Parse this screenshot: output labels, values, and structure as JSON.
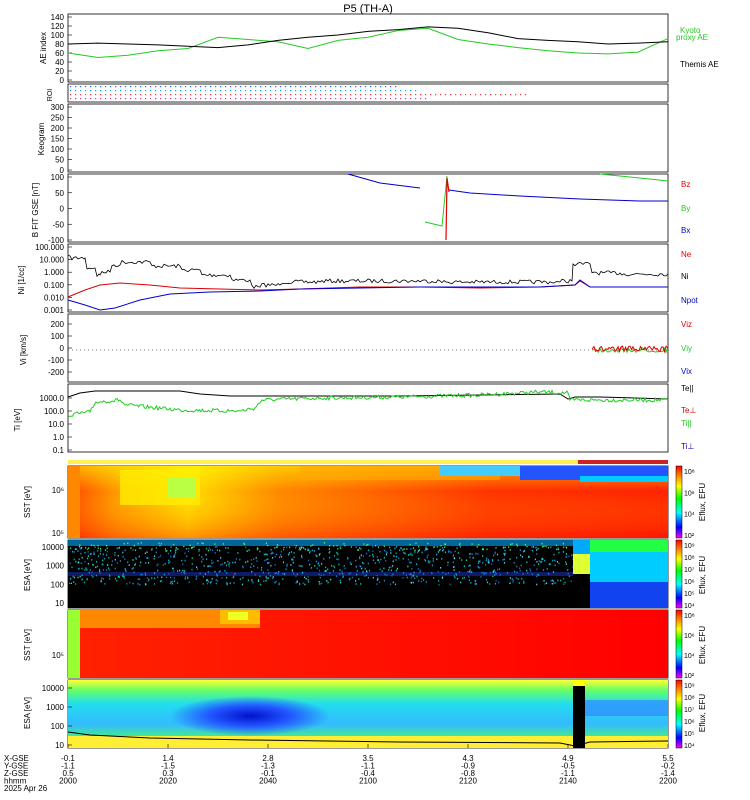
{
  "chart_data": {
    "type": "line",
    "title": "P5 (TH-A)",
    "x_start_label": "2000",
    "panels": [
      {
        "id": "ae",
        "ylabel": "AE index",
        "ylim": [
          0,
          140
        ],
        "yticks": [
          "140",
          "120",
          "100",
          "80",
          "60",
          "40",
          "20",
          "0"
        ],
        "legend": [
          {
            "text": "Kyoto",
            "color": "#22cc22"
          },
          {
            "text": "proxy AE",
            "color": "#22cc22"
          },
          {
            "text": "Themis AE",
            "color": "#000000"
          }
        ],
        "series": [
          {
            "name": "Kyoto proxy AE",
            "color": "#22cc22",
            "x": [
              0,
              0.05,
              0.1,
              0.15,
              0.2,
              0.25,
              0.3,
              0.35,
              0.4,
              0.45,
              0.5,
              0.55,
              0.6,
              0.65,
              0.7,
              0.75,
              0.8,
              0.85,
              0.9,
              0.95,
              1
            ],
            "y": [
              60,
              50,
              55,
              65,
              70,
              95,
              90,
              85,
              70,
              88,
              95,
              110,
              115,
              90,
              80,
              72,
              65,
              60,
              58,
              62,
              92
            ]
          },
          {
            "name": "Themis AE",
            "color": "#000000",
            "x": [
              0,
              0.05,
              0.1,
              0.15,
              0.2,
              0.25,
              0.3,
              0.35,
              0.4,
              0.45,
              0.5,
              0.55,
              0.6,
              0.65,
              0.7,
              0.75,
              0.8,
              0.85,
              0.9,
              0.95,
              1
            ],
            "y": [
              80,
              82,
              80,
              78,
              75,
              72,
              78,
              88,
              95,
              100,
              108,
              112,
              118,
              115,
              105,
              92,
              88,
              85,
              80,
              82,
              85
            ]
          }
        ]
      },
      {
        "id": "roi",
        "ylabel": "ROI",
        "yticks": []
      },
      {
        "id": "keogram",
        "ylabel": "Keogram",
        "ylim": [
          0,
          300
        ],
        "yticks": [
          "300",
          "250",
          "200",
          "150",
          "100",
          "50",
          "0"
        ]
      },
      {
        "id": "bfield",
        "ylabel": "B FIT GSE [nT]",
        "ylim": [
          -100,
          100
        ],
        "yticks": [
          "100",
          "50",
          "0",
          "-50",
          "-100"
        ],
        "legend": [
          {
            "text": "Bz",
            "color": "#dd0000"
          },
          {
            "text": "By",
            "color": "#22cc22"
          },
          {
            "text": "Bx",
            "color": "#0000cc"
          }
        ]
      },
      {
        "id": "density",
        "ylabel": "Ni [1/cc]",
        "scale": "log",
        "yticks": [
          "100.000",
          "10.000",
          "1.000",
          "0.100",
          "0.010",
          "0.001"
        ],
        "legend": [
          {
            "text": "Ne",
            "color": "#dd0000"
          },
          {
            "text": "Ni",
            "color": "#000000"
          },
          {
            "text": "Npot",
            "color": "#0000cc"
          }
        ]
      },
      {
        "id": "velocity",
        "ylabel": "Vi [km/s]",
        "ylim": [
          -300,
          300
        ],
        "yticks": [
          "200",
          "100",
          "0",
          "-100",
          "-200"
        ],
        "legend": [
          {
            "text": "Viz",
            "color": "#dd0000"
          },
          {
            "text": "Viy",
            "color": "#22cc22"
          },
          {
            "text": "Vix",
            "color": "#0000cc"
          }
        ]
      },
      {
        "id": "temperature",
        "ylabel": "Ti [eV]",
        "scale": "log",
        "yticks": [
          "1000.0",
          "100.0",
          "10.0",
          "1.0",
          "0.1"
        ],
        "legend": [
          {
            "text": "Te||",
            "color": "#000000"
          },
          {
            "text": "Te⊥",
            "color": "#dd0000"
          },
          {
            "text": "Ti||",
            "color": "#22cc22"
          },
          {
            "text": "Ti⊥",
            "color": "#0000cc"
          }
        ]
      },
      {
        "id": "sst_e",
        "ylabel": "SST [eV]",
        "yticks": [
          "10⁶",
          "10⁵"
        ],
        "cbar_label": "Eflux, EFU",
        "cbar_ticks": [
          "10⁸",
          "10⁶",
          "10⁴",
          "10²"
        ]
      },
      {
        "id": "esa_e",
        "ylabel": "ESA [eV]",
        "yticks": [
          "10000",
          "1000",
          "100",
          "10"
        ],
        "cbar_label": "Eflux, EFU",
        "cbar_ticks": [
          "10⁹",
          "10⁸",
          "10⁷",
          "10⁶",
          "10⁵",
          "10⁴"
        ]
      },
      {
        "id": "sst_i",
        "ylabel": "SST [eV]",
        "yticks": [
          "10⁵"
        ],
        "cbar_label": "Eflux, EFU",
        "cbar_ticks": [
          "10⁸",
          "10⁶",
          "10⁴",
          "10²"
        ]
      },
      {
        "id": "esa_i",
        "ylabel": "ESA [eV]",
        "yticks": [
          "10000",
          "1000",
          "100",
          "10"
        ],
        "cbar_label": "Eflux, EFU",
        "cbar_ticks": [
          "10⁹",
          "10⁸",
          "10⁷",
          "10⁶",
          "10⁵",
          "10⁴"
        ]
      }
    ],
    "x_axis": {
      "row_labels": [
        "X-GSE",
        "Y-GSE",
        "Z-GSE",
        "hhmm",
        "2025 Apr 26"
      ],
      "ticks": [
        {
          "x": 0.0,
          "values": [
            "-0.1",
            "-1.1",
            "0.5",
            "2000"
          ]
        },
        {
          "x": 0.1667,
          "values": [
            "1.4",
            "-1.5",
            "0.3",
            "2020"
          ]
        },
        {
          "x": 0.3333,
          "values": [
            "2.8",
            "-1.3",
            "-0.1",
            "2040"
          ]
        },
        {
          "x": 0.5,
          "values": [
            "3.5",
            "-1.1",
            "-0.4",
            "2100"
          ]
        },
        {
          "x": 0.6667,
          "values": [
            "4.3",
            "-0.9",
            "-0.8",
            "2120"
          ]
        },
        {
          "x": 0.8333,
          "values": [
            "4.9",
            "-0.5",
            "-1.1",
            "2140"
          ]
        },
        {
          "x": 1.0,
          "values": [
            "5.5",
            "-0.2",
            "-1.4",
            "2200"
          ]
        }
      ]
    }
  }
}
